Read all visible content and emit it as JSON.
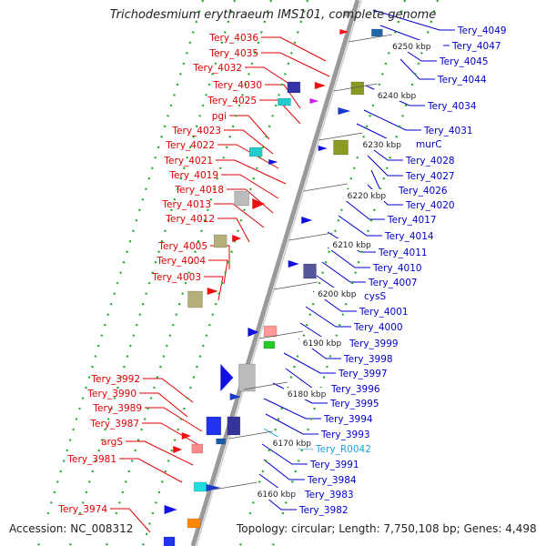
{
  "header": {
    "title": "Trichodesmium erythraeum IMS101, complete genome"
  },
  "footer": {
    "accession": "Accession: NC_008312",
    "topology": "Topology: circular; Length: 7,750,108 bp; Genes: 4,498"
  },
  "colors": {
    "left_label": "#e00000",
    "right_label": "#0000cc",
    "rna_label": "#20a0e0",
    "backbone": "#888888",
    "track_dot": "#22aa22",
    "tick": "#117711"
  },
  "scale_ticks": [
    "6250 kbp",
    "6240 kbp",
    "6230 kbp",
    "6220 kbp",
    "6210 kbp",
    "6200 kbp",
    "6190 kbp",
    "6180 kbp",
    "6170 kbp",
    "6160 kbp"
  ],
  "left_labels": [
    "Tery_4036",
    "Tery_4035",
    "Tery_4032",
    "Tery_4030",
    "Tery_4025",
    "pgi",
    "Tery_4023",
    "Tery_4022",
    "Tery_4021",
    "Tery_4019",
    "Tery_4018",
    "Tery_4013",
    "Tery_4012",
    "Tery_4005",
    "Tery_4004",
    "Tery_4003",
    "Tery_3992",
    "Tery_3990",
    "Tery_3989",
    "Tery_3987",
    "argS",
    "Tery_3981",
    "Tery_3974"
  ],
  "right_labels": [
    "Tery_4049",
    "Tery_4047",
    "Tery_4045",
    "Tery_4044",
    "Tery_4034",
    "Tery_4031",
    "murC",
    "Tery_4028",
    "Tery_4027",
    "Tery_4026",
    "Tery_4020",
    "Tery_4017",
    "Tery_4014",
    "Tery_4011",
    "Tery_4010",
    "Tery_4007",
    "cysS",
    "Tery_4001",
    "Tery_4000",
    "Tery_3999",
    "Tery_3998",
    "Tery_3997",
    "Tery_3996",
    "Tery_3995",
    "Tery_3994",
    "Tery_3993",
    "Tery_R0042",
    "Tery_3991",
    "Tery_3984",
    "Tery_3983",
    "Tery_3982"
  ]
}
